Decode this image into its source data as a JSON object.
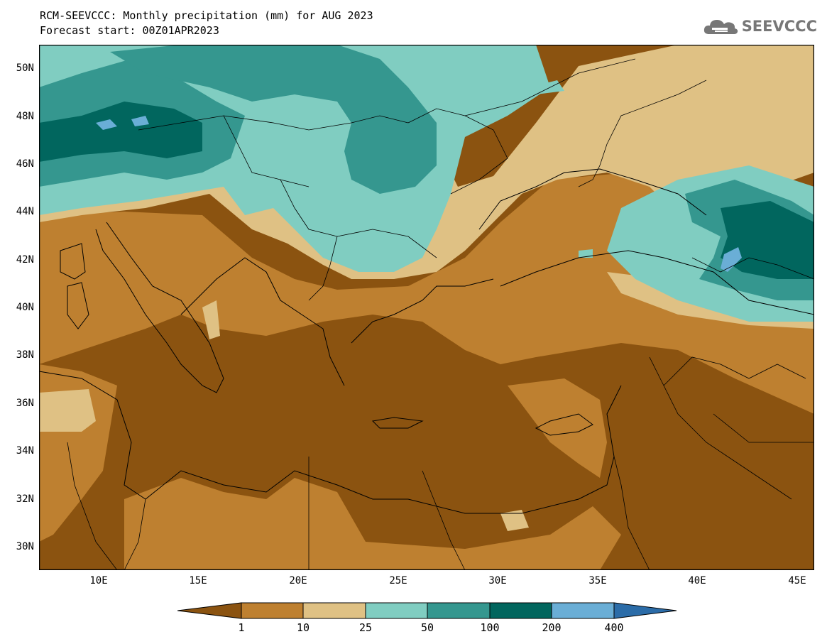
{
  "header": {
    "title_line1": "RCM-SEEVCCC: Monthly precipitation (mm) for AUG 2023",
    "title_line2": "Forecast start: 00Z01APR2023"
  },
  "logo": {
    "text": "SEEVCCC",
    "icon": "cloud-icon"
  },
  "map": {
    "lat_labels": [
      "50N",
      "48N",
      "46N",
      "44N",
      "42N",
      "40N",
      "38N",
      "36N",
      "34N",
      "32N",
      "30N"
    ],
    "lon_labels": [
      "10E",
      "15E",
      "20E",
      "25E",
      "30E",
      "35E",
      "40E",
      "45E"
    ]
  },
  "colorbar": {
    "labels": [
      "1",
      "10",
      "25",
      "50",
      "100",
      "200",
      "400"
    ],
    "colors": [
      "#8b5310",
      "#be8030",
      "#dfc184",
      "#80cdc1",
      "#35978f",
      "#01665e",
      "#6aaed6",
      "#2b6ca8"
    ]
  }
}
